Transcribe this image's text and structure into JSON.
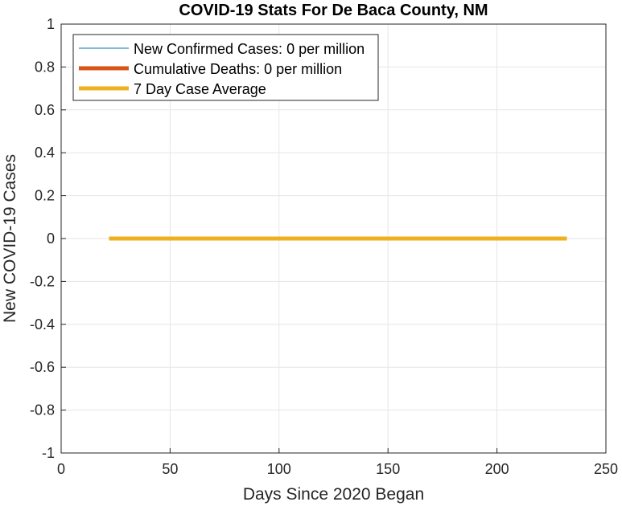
{
  "chart_data": {
    "type": "line",
    "title": "COVID-19 Stats For De Baca County, NM",
    "xlabel": "Days Since 2020 Began",
    "ylabel": "New COVID-19 Cases",
    "xlim": [
      0,
      250
    ],
    "ylim": [
      -1,
      1
    ],
    "xticks": [
      0,
      50,
      100,
      150,
      200,
      250
    ],
    "yticks": [
      -1,
      -0.8,
      -0.6,
      -0.4,
      -0.2,
      0,
      0.2,
      0.4,
      0.6,
      0.8,
      1
    ],
    "xtick_labels": [
      "0",
      "50",
      "100",
      "150",
      "200",
      "250"
    ],
    "ytick_labels": [
      "-1",
      "-0.8",
      "-0.6",
      "-0.4",
      "-0.2",
      "0",
      "0.2",
      "0.4",
      "0.6",
      "0.8",
      "1"
    ],
    "grid": true,
    "legend_position": "top-left",
    "series": [
      {
        "name": "New Confirmed Cases: 0 per million",
        "color": "#0072BD",
        "style": "thin",
        "x": [
          22,
          232
        ],
        "y": [
          0,
          0
        ]
      },
      {
        "name": "Cumulative Deaths: 0 per million",
        "color": "#D95319",
        "style": "thick",
        "x": [
          22,
          232
        ],
        "y": [
          0,
          0
        ]
      },
      {
        "name": "7 Day Case Average",
        "color": "#EDB120",
        "style": "thick",
        "x": [
          22,
          232
        ],
        "y": [
          0,
          0
        ]
      }
    ]
  }
}
